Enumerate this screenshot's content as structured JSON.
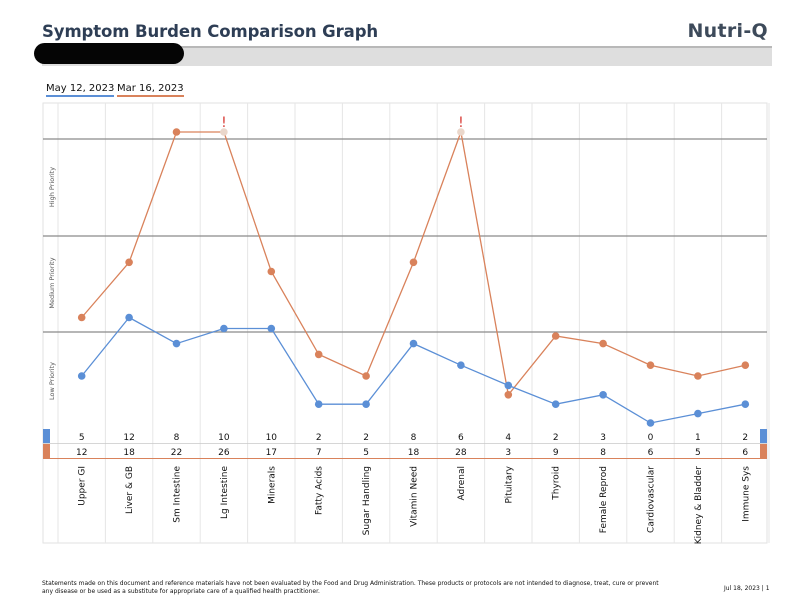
{
  "header": {
    "title": "Symptom Burden Comparison Graph",
    "brand": "Nutri-Q"
  },
  "legend": [
    {
      "label": "May 12, 2023",
      "color": "#5b8fd6"
    },
    {
      "label": "Mar 16, 2023",
      "color": "#d9825b"
    }
  ],
  "flag_icon": "exclamation-icon",
  "flag_color": "#d9403a",
  "chart_data": {
    "type": "line",
    "title": "Symptom Burden Comparison Graph",
    "categories": [
      "Upper GI",
      "Liver & GB",
      "Sm Intestine",
      "Lg Intestine",
      "Minerals",
      "Fatty Acids",
      "Sugar Handling",
      "Vitamin Need",
      "Adrenal",
      "Pituitary",
      "Thyroid",
      "Female Reprod",
      "Cardiovascular",
      "Kidney & Bladder",
      "Immune Sys"
    ],
    "priority_bands": [
      "Low Priority",
      "Medium Priority",
      "High Priority"
    ],
    "grid": true,
    "series": [
      {
        "name": "May 12, 2023",
        "color": "#5b8fd6",
        "values": [
          5,
          12,
          8,
          10,
          10,
          2,
          2,
          8,
          6,
          4,
          2,
          3,
          0,
          1,
          2
        ]
      },
      {
        "name": "Mar 16, 2023",
        "color": "#d9825b",
        "values": [
          12,
          18,
          22,
          26,
          17,
          7,
          5,
          18,
          28,
          3,
          9,
          8,
          6,
          5,
          6
        ]
      }
    ]
  },
  "footer": {
    "disclaimer": "Statements made on this document and reference materials have not been evaluated by the Food and Drug Administration. These products or protocols are not intended to diagnose, treat, cure or prevent any disease or be used as a substitute for appropriate care of a qualified health practitioner.",
    "date_page": "Jul 18, 2023 | 1"
  }
}
